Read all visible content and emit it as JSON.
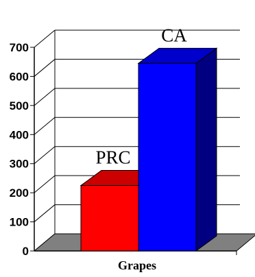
{
  "chart_data": {
    "type": "bar",
    "three_d": true,
    "categories": [
      "Grapes"
    ],
    "xlabel": "Grapes",
    "ylim": [
      0,
      700
    ],
    "y_ticks": [
      "0",
      "100",
      "200",
      "300",
      "400",
      "500",
      "600",
      "700"
    ],
    "grid": true,
    "series": [
      {
        "name": "PRC",
        "values": [
          225
        ],
        "color": "#ff0000",
        "side_color": "#990000",
        "top_color": "#cc0000"
      },
      {
        "name": "CA",
        "values": [
          645
        ],
        "color": "#0000ff",
        "side_color": "#000080",
        "top_color": "#0000cc"
      }
    ],
    "floor_color": "#808080"
  }
}
